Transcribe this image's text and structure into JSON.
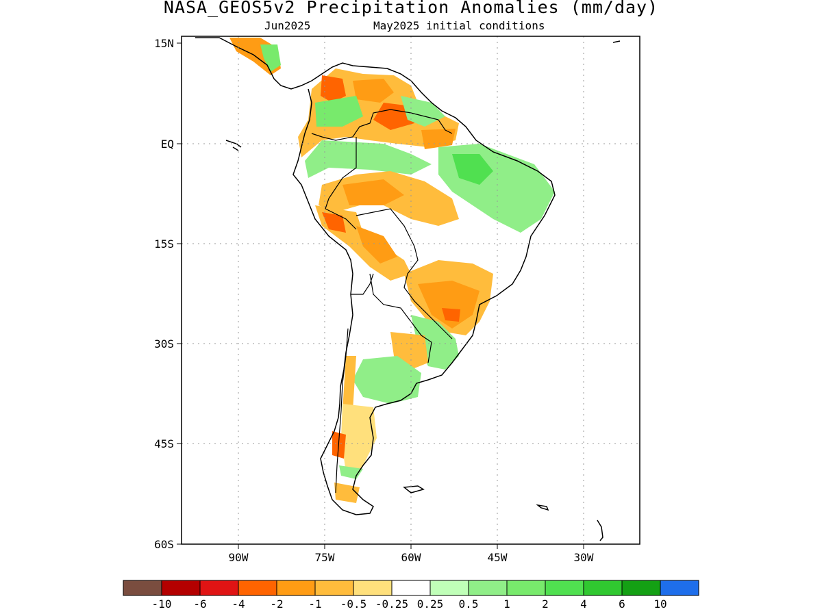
{
  "map": {
    "title": "NASA_GEOS5v2 Precipitation Anomalies (mm/day)",
    "target_month": "Jun2025",
    "initial_conditions": "May2025 initial conditions",
    "lat_labels": [
      "15N",
      "EQ",
      "15S",
      "30S",
      "45S",
      "60S"
    ],
    "lon_labels": [
      "90W",
      "75W",
      "60W",
      "45W",
      "30W"
    ],
    "grid": "dotted"
  },
  "colorbar": {
    "colors": [
      "#7a4d3f",
      "#b40000",
      "#e01414",
      "#ff6400",
      "#ff9c14",
      "#ffbc3c",
      "#ffe07c",
      "#ffffff",
      "#c0ffb8",
      "#90ee88",
      "#78ea6c",
      "#50e050",
      "#30c830",
      "#14a014",
      "#1e6eeb"
    ],
    "labels": [
      "-10",
      "-6",
      "-4",
      "-2",
      "-1",
      "-0.5",
      "-0.25",
      "0.25",
      "0.5",
      "1",
      "2",
      "4",
      "6",
      "10"
    ]
  }
}
